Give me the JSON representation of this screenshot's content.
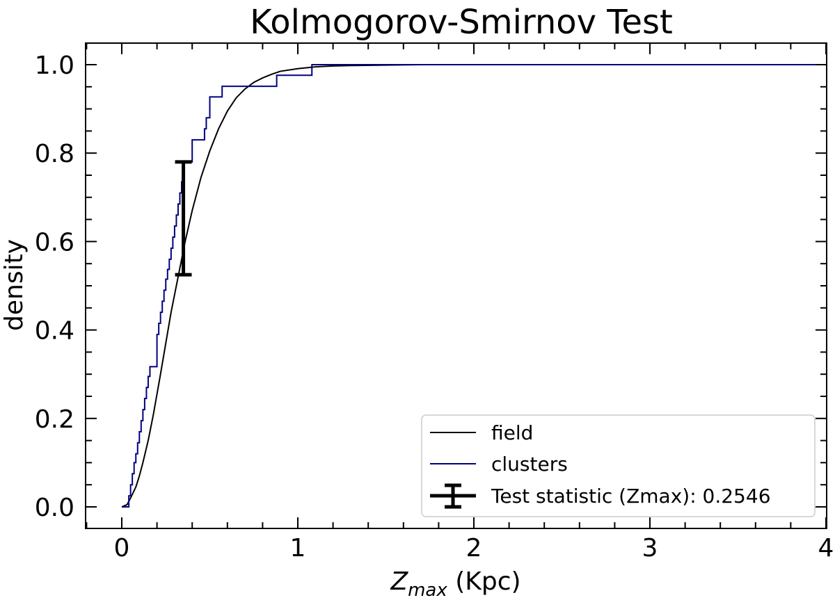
{
  "chart_data": {
    "type": "line",
    "title": "Kolmogorov-Smirnov Test",
    "xlabel": {
      "base": "Z",
      "subscript": "max",
      "suffix": " (Kpc)"
    },
    "ylabel": "density",
    "xlim": [
      -0.2,
      4.0
    ],
    "ylim": [
      -0.05,
      1.05
    ],
    "x_ticks": [
      0,
      1,
      2,
      3,
      4
    ],
    "x_tick_labels": [
      "0",
      "1",
      "2",
      "3",
      "4"
    ],
    "y_ticks": [
      0.0,
      0.2,
      0.4,
      0.6,
      0.8,
      1.0
    ],
    "y_tick_labels": [
      "0.0",
      "0.2",
      "0.4",
      "0.6",
      "0.8",
      "1.0"
    ],
    "minor_tick_step_x": 0.2,
    "minor_tick_step_y": 0.05,
    "grid": false,
    "legend_position": "bottom-right",
    "series": [
      {
        "name": "field",
        "style": "line",
        "color": "#000000",
        "x": [
          0.0,
          0.03,
          0.05,
          0.08,
          0.1,
          0.12,
          0.15,
          0.18,
          0.2,
          0.22,
          0.25,
          0.28,
          0.3,
          0.33,
          0.36,
          0.4,
          0.45,
          0.5,
          0.55,
          0.6,
          0.65,
          0.7,
          0.75,
          0.8,
          0.85,
          0.9,
          1.0,
          1.1,
          1.2,
          1.3,
          1.5,
          1.7,
          2.0,
          2.5,
          3.0,
          4.0
        ],
        "y": [
          0.0,
          0.005,
          0.02,
          0.045,
          0.07,
          0.1,
          0.15,
          0.21,
          0.255,
          0.3,
          0.37,
          0.44,
          0.48,
          0.54,
          0.6,
          0.67,
          0.745,
          0.805,
          0.855,
          0.895,
          0.925,
          0.945,
          0.96,
          0.97,
          0.978,
          0.985,
          0.991,
          0.995,
          0.997,
          0.998,
          0.999,
          1.0,
          1.0,
          1.0,
          1.0,
          1.0
        ]
      },
      {
        "name": "clusters",
        "style": "step",
        "color": "#00007f",
        "x": [
          0.0,
          0.04,
          0.05,
          0.06,
          0.07,
          0.08,
          0.09,
          0.1,
          0.11,
          0.12,
          0.13,
          0.14,
          0.15,
          0.16,
          0.17,
          0.2,
          0.21,
          0.22,
          0.23,
          0.24,
          0.25,
          0.26,
          0.27,
          0.28,
          0.29,
          0.3,
          0.31,
          0.32,
          0.33,
          0.34,
          0.35,
          0.4,
          0.45,
          0.47,
          0.48,
          0.5,
          0.57,
          0.88,
          1.08,
          4.0
        ],
        "y": [
          0.0,
          0.025,
          0.05,
          0.075,
          0.1,
          0.12,
          0.145,
          0.17,
          0.195,
          0.22,
          0.245,
          0.27,
          0.295,
          0.317,
          0.317,
          0.39,
          0.415,
          0.44,
          0.465,
          0.49,
          0.515,
          0.537,
          0.56,
          0.585,
          0.61,
          0.635,
          0.66,
          0.685,
          0.71,
          0.735,
          0.78,
          0.83,
          0.83,
          0.855,
          0.88,
          0.927,
          0.951,
          0.976,
          1.0,
          1.0
        ]
      }
    ],
    "test_statistic": {
      "label": "Test statistic (Zmax): 0.2546",
      "x": 0.35,
      "y_low": 0.525,
      "y_high": 0.78,
      "value": 0.2546,
      "color": "#000000"
    }
  }
}
